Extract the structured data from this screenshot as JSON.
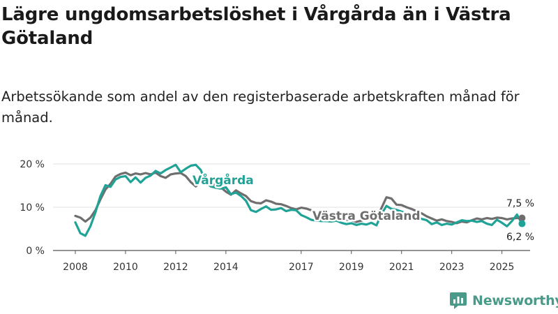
{
  "header": {
    "title": "Lägre ungdomsarbetslöshet i Vårgårda än i Västra Götaland",
    "subtitle": "Arbetssökande som andel av den registerbaserade arbetskraften månad för månad."
  },
  "brand": {
    "name": "Newsworthy"
  },
  "colors": {
    "vargarda": "#1fa396",
    "vastra_gotaland": "#6e6e6e",
    "grid": "#e2e2e2",
    "axis": "#555555",
    "logo": "#4a9a8a"
  },
  "chart_data": {
    "type": "line",
    "title": "Lägre ungdomsarbetslöshet i Vårgårda än i Västra Götaland",
    "subtitle": "Arbetssökande som andel av den registerbaserade arbetskraften månad för månad.",
    "xlabel": "",
    "ylabel": "",
    "xlim": [
      2008.0,
      2025.9
    ],
    "ylim": [
      0,
      20
    ],
    "grid": true,
    "legend": "inline",
    "y_ticks": [
      {
        "value": 0,
        "label": "0 %"
      },
      {
        "value": 10,
        "label": "10 %"
      },
      {
        "value": 20,
        "label": "20 %"
      }
    ],
    "x_ticks": [
      {
        "value": 2008,
        "label": "2008"
      },
      {
        "value": 2010,
        "label": "2010"
      },
      {
        "value": 2012,
        "label": "2012"
      },
      {
        "value": 2014,
        "label": "2014"
      },
      {
        "value": 2017,
        "label": "2017"
      },
      {
        "value": 2019,
        "label": "2019"
      },
      {
        "value": 2021,
        "label": "2021"
      },
      {
        "value": 2023,
        "label": "2023"
      },
      {
        "value": 2025,
        "label": "2025"
      }
    ],
    "series": [
      {
        "name": "Västra Götaland",
        "color": "#6e6e6e",
        "last_value_label": "7,5 %",
        "x": [
          2008.0,
          2008.2,
          2008.4,
          2008.6,
          2008.8,
          2009.0,
          2009.2,
          2009.4,
          2009.6,
          2009.8,
          2010.0,
          2010.2,
          2010.4,
          2010.6,
          2010.8,
          2011.0,
          2011.2,
          2011.4,
          2011.6,
          2011.8,
          2012.0,
          2012.2,
          2012.4,
          2012.6,
          2012.8,
          2013.0,
          2013.2,
          2013.4,
          2013.6,
          2013.8,
          2014.0,
          2014.2,
          2014.4,
          2014.6,
          2014.8,
          2015.0,
          2015.2,
          2015.4,
          2015.6,
          2015.8,
          2016.0,
          2016.2,
          2016.4,
          2016.6,
          2016.8,
          2017.0,
          2017.2,
          2017.4,
          2017.6,
          2017.8,
          2018.0,
          2018.2,
          2018.4,
          2018.6,
          2018.8,
          2019.0,
          2019.2,
          2019.4,
          2019.6,
          2019.8,
          2020.0,
          2020.2,
          2020.4,
          2020.6,
          2020.8,
          2021.0,
          2021.2,
          2021.4,
          2021.6,
          2021.8,
          2022.0,
          2022.2,
          2022.4,
          2022.6,
          2022.8,
          2023.0,
          2023.2,
          2023.4,
          2023.6,
          2023.8,
          2024.0,
          2024.2,
          2024.4,
          2024.6,
          2024.8,
          2025.0,
          2025.2,
          2025.4,
          2025.6,
          2025.8
        ],
        "values": [
          8.0,
          7.6,
          6.7,
          7.6,
          9.3,
          11.8,
          14.1,
          15.4,
          17.1,
          17.7,
          18.0,
          17.4,
          17.8,
          17.6,
          17.9,
          17.6,
          18.0,
          17.2,
          16.8,
          17.6,
          17.8,
          17.9,
          17.2,
          15.8,
          14.8,
          15.8,
          16.1,
          15.4,
          15.1,
          14.6,
          13.6,
          12.9,
          13.9,
          13.2,
          12.6,
          11.4,
          11.0,
          10.9,
          11.6,
          11.3,
          10.8,
          10.7,
          10.3,
          9.8,
          9.5,
          9.9,
          9.7,
          9.3,
          8.1,
          7.8,
          7.4,
          7.1,
          7.0,
          7.2,
          7.1,
          7.0,
          6.6,
          6.9,
          7.2,
          7.6,
          7.4,
          9.8,
          12.3,
          12.0,
          10.6,
          10.5,
          10.0,
          9.6,
          9.1,
          8.6,
          7.9,
          7.4,
          6.9,
          7.2,
          6.8,
          6.6,
          6.3,
          6.7,
          6.5,
          7.0,
          7.4,
          7.2,
          7.5,
          7.3,
          7.6,
          7.5,
          7.2,
          7.4,
          7.5,
          7.5
        ]
      },
      {
        "name": "Vårgårda",
        "color": "#1fa396",
        "last_value_label": "6,2 %",
        "x": [
          2008.0,
          2008.2,
          2008.4,
          2008.6,
          2008.8,
          2009.0,
          2009.2,
          2009.4,
          2009.6,
          2009.8,
          2010.0,
          2010.2,
          2010.4,
          2010.6,
          2010.8,
          2011.0,
          2011.2,
          2011.4,
          2011.6,
          2011.8,
          2012.0,
          2012.2,
          2012.4,
          2012.6,
          2012.8,
          2013.0,
          2013.2,
          2013.4,
          2013.6,
          2013.8,
          2014.0,
          2014.2,
          2014.4,
          2014.6,
          2014.8,
          2015.0,
          2015.2,
          2015.4,
          2015.6,
          2015.8,
          2016.0,
          2016.2,
          2016.4,
          2016.6,
          2016.8,
          2017.0,
          2017.2,
          2017.4,
          2017.6,
          2017.8,
          2018.0,
          2018.2,
          2018.4,
          2018.6,
          2018.8,
          2019.0,
          2019.2,
          2019.4,
          2019.6,
          2019.8,
          2020.0,
          2020.2,
          2020.4,
          2020.6,
          2020.8,
          2021.0,
          2021.2,
          2021.4,
          2021.6,
          2021.8,
          2022.0,
          2022.2,
          2022.4,
          2022.6,
          2022.8,
          2023.0,
          2023.2,
          2023.4,
          2023.6,
          2023.8,
          2024.0,
          2024.2,
          2024.4,
          2024.6,
          2024.8,
          2025.0,
          2025.2,
          2025.4,
          2025.6,
          2025.8
        ],
        "values": [
          6.5,
          4.0,
          3.4,
          5.6,
          8.8,
          12.6,
          15.1,
          14.7,
          16.4,
          17.0,
          17.2,
          15.8,
          16.9,
          15.7,
          16.8,
          17.3,
          18.4,
          17.8,
          18.6,
          19.2,
          19.8,
          18.1,
          18.9,
          19.6,
          19.8,
          18.6,
          15.7,
          14.8,
          14.5,
          14.3,
          14.6,
          13.0,
          13.4,
          12.6,
          11.5,
          9.3,
          8.9,
          9.6,
          10.2,
          9.4,
          9.5,
          9.8,
          9.1,
          9.4,
          9.3,
          8.2,
          7.7,
          7.1,
          6.9,
          6.8,
          6.8,
          6.7,
          6.9,
          6.4,
          6.1,
          6.3,
          5.9,
          6.2,
          6.0,
          6.4,
          5.8,
          8.4,
          10.3,
          9.6,
          9.4,
          9.0,
          8.6,
          8.2,
          8.0,
          7.3,
          7.0,
          6.1,
          6.5,
          5.9,
          6.2,
          6.0,
          6.5,
          7.0,
          6.8,
          6.9,
          6.6,
          6.8,
          6.2,
          5.9,
          7.1,
          6.4,
          5.6,
          6.8,
          8.3,
          6.2
        ]
      }
    ]
  }
}
